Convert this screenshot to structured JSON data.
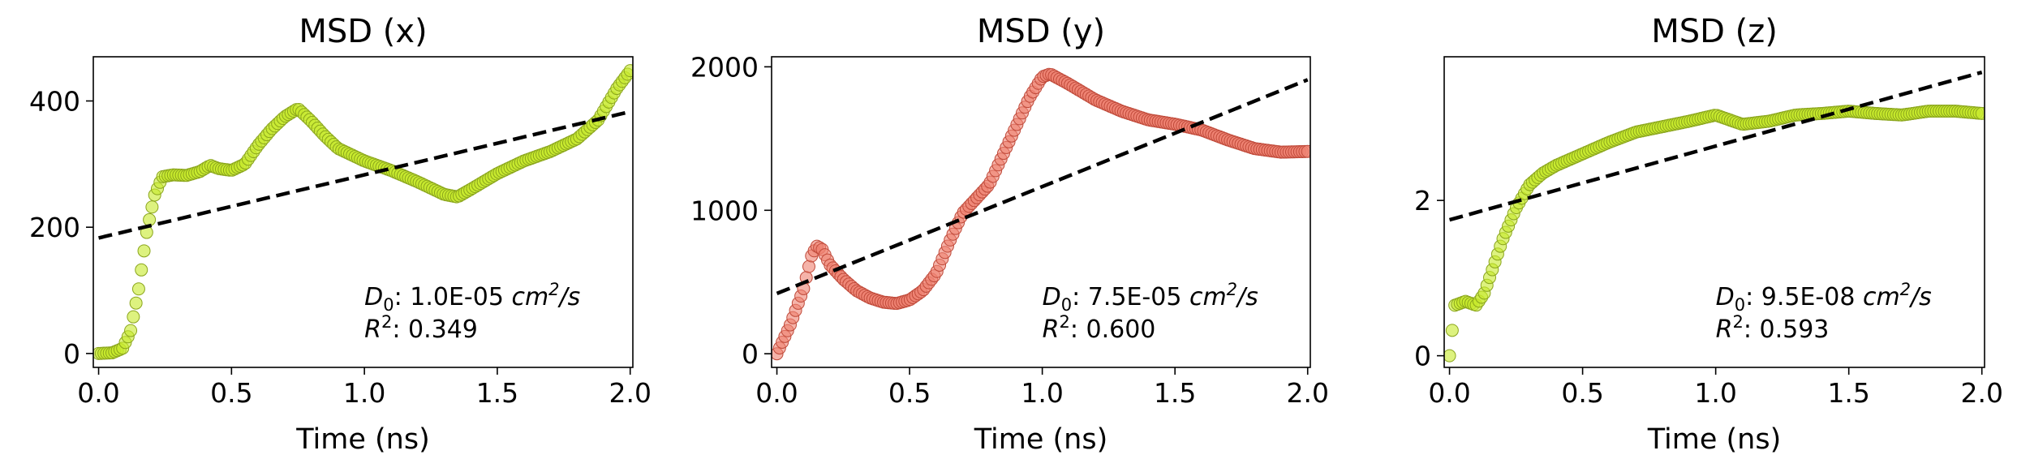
{
  "chart_data": [
    {
      "type": "scatter",
      "title": "MSD (x)",
      "xlabel": "Time (ns)",
      "ylabel": "",
      "xlim": [
        -0.02,
        2.01
      ],
      "ylim": [
        -22,
        470
      ],
      "xticks": [
        "0.0",
        "0.5",
        "1.0",
        "1.5",
        "2.0"
      ],
      "yticks": [
        "0",
        "200",
        "400"
      ],
      "marker_color": "#c6ea2a",
      "marker_edge": "#8aa51c",
      "fit": {
        "slope": 100,
        "intercept": 183,
        "x0": 0.0,
        "x1": 2.0,
        "style": "dashed",
        "color": "#000000"
      },
      "annotation": {
        "d0_label": "D",
        "d0_sub": "0",
        "d0_value": ": 1.0E-05 ",
        "unit_base": "cm",
        "unit_exp": "2",
        "unit_tail": "/s",
        "r2_label": "R",
        "r2_exp": "2",
        "r2_value": ": 0.349"
      },
      "profile": [
        [
          0.0,
          0
        ],
        [
          0.05,
          1
        ],
        [
          0.09,
          8
        ],
        [
          0.12,
          35
        ],
        [
          0.15,
          100
        ],
        [
          0.18,
          190
        ],
        [
          0.21,
          250
        ],
        [
          0.24,
          280
        ],
        [
          0.28,
          283
        ],
        [
          0.33,
          282
        ],
        [
          0.38,
          288
        ],
        [
          0.42,
          298
        ],
        [
          0.45,
          293
        ],
        [
          0.5,
          290
        ],
        [
          0.55,
          300
        ],
        [
          0.6,
          330
        ],
        [
          0.65,
          355
        ],
        [
          0.7,
          375
        ],
        [
          0.75,
          388
        ],
        [
          0.8,
          368
        ],
        [
          0.85,
          345
        ],
        [
          0.9,
          325
        ],
        [
          1.0,
          305
        ],
        [
          1.1,
          290
        ],
        [
          1.2,
          272
        ],
        [
          1.3,
          252
        ],
        [
          1.35,
          248
        ],
        [
          1.4,
          260
        ],
        [
          1.5,
          285
        ],
        [
          1.6,
          305
        ],
        [
          1.7,
          320
        ],
        [
          1.8,
          340
        ],
        [
          1.88,
          370
        ],
        [
          1.95,
          420
        ],
        [
          2.0,
          448
        ]
      ]
    },
    {
      "type": "scatter",
      "title": "MSD (y)",
      "xlabel": "Time (ns)",
      "ylabel": "",
      "xlim": [
        -0.02,
        2.01
      ],
      "ylim": [
        -95,
        2070
      ],
      "xticks": [
        "0.0",
        "0.5",
        "1.0",
        "1.5",
        "2.0"
      ],
      "yticks": [
        "0",
        "1000",
        "2000"
      ],
      "marker_color": "#ee8170",
      "marker_edge": "#c04a3a",
      "fit": {
        "slope": 745,
        "intercept": 420,
        "x0": 0.0,
        "x1": 2.0,
        "style": "dashed",
        "color": "#000000"
      },
      "annotation": {
        "d0_label": "D",
        "d0_sub": "0",
        "d0_value": ": 7.5E-05 ",
        "unit_base": "cm",
        "unit_exp": "2",
        "unit_tail": "/s",
        "r2_label": "R",
        "r2_exp": "2",
        "r2_value": ": 0.600"
      },
      "profile": [
        [
          0.0,
          0
        ],
        [
          0.05,
          200
        ],
        [
          0.1,
          450
        ],
        [
          0.13,
          680
        ],
        [
          0.15,
          750
        ],
        [
          0.17,
          730
        ],
        [
          0.2,
          620
        ],
        [
          0.25,
          520
        ],
        [
          0.3,
          440
        ],
        [
          0.35,
          390
        ],
        [
          0.4,
          360
        ],
        [
          0.45,
          350
        ],
        [
          0.5,
          375
        ],
        [
          0.55,
          440
        ],
        [
          0.6,
          560
        ],
        [
          0.65,
          780
        ],
        [
          0.7,
          980
        ],
        [
          0.75,
          1080
        ],
        [
          0.8,
          1180
        ],
        [
          0.85,
          1380
        ],
        [
          0.9,
          1580
        ],
        [
          0.95,
          1780
        ],
        [
          1.0,
          1930
        ],
        [
          1.03,
          1950
        ],
        [
          1.1,
          1880
        ],
        [
          1.2,
          1770
        ],
        [
          1.3,
          1690
        ],
        [
          1.4,
          1630
        ],
        [
          1.5,
          1600
        ],
        [
          1.6,
          1560
        ],
        [
          1.7,
          1490
        ],
        [
          1.8,
          1430
        ],
        [
          1.9,
          1405
        ],
        [
          2.0,
          1410
        ]
      ]
    },
    {
      "type": "scatter",
      "title": "MSD (z)",
      "xlabel": "Time (ns)",
      "ylabel": "",
      "xlim": [
        -0.02,
        2.01
      ],
      "ylim": [
        -0.15,
        3.85
      ],
      "xticks": [
        "0.0",
        "0.5",
        "1.0",
        "1.5",
        "2.0"
      ],
      "yticks": [
        "0",
        "2"
      ],
      "marker_color": "#c6ea2a",
      "marker_edge": "#8aa51c",
      "fit": {
        "slope": 0.95,
        "intercept": 1.75,
        "x0": 0.0,
        "x1": 2.0,
        "style": "dashed",
        "color": "#000000"
      },
      "annotation": {
        "d0_label": "D",
        "d0_sub": "0",
        "d0_value": ": 9.5E-08 ",
        "unit_base": "cm",
        "unit_exp": "2",
        "unit_tail": "/s",
        "r2_label": "R",
        "r2_exp": "2",
        "r2_value": ": 0.593"
      },
      "profile": [
        [
          0.0,
          0
        ],
        [
          0.02,
          0.65
        ],
        [
          0.06,
          0.7
        ],
        [
          0.1,
          0.65
        ],
        [
          0.13,
          0.8
        ],
        [
          0.16,
          1.1
        ],
        [
          0.2,
          1.5
        ],
        [
          0.25,
          1.9
        ],
        [
          0.3,
          2.2
        ],
        [
          0.35,
          2.35
        ],
        [
          0.4,
          2.45
        ],
        [
          0.5,
          2.6
        ],
        [
          0.6,
          2.75
        ],
        [
          0.7,
          2.88
        ],
        [
          0.8,
          2.95
        ],
        [
          0.9,
          3.02
        ],
        [
          1.0,
          3.1
        ],
        [
          1.1,
          2.98
        ],
        [
          1.2,
          3.02
        ],
        [
          1.3,
          3.1
        ],
        [
          1.4,
          3.12
        ],
        [
          1.5,
          3.15
        ],
        [
          1.6,
          3.12
        ],
        [
          1.7,
          3.1
        ],
        [
          1.8,
          3.15
        ],
        [
          1.9,
          3.15
        ],
        [
          2.0,
          3.12
        ]
      ]
    }
  ]
}
